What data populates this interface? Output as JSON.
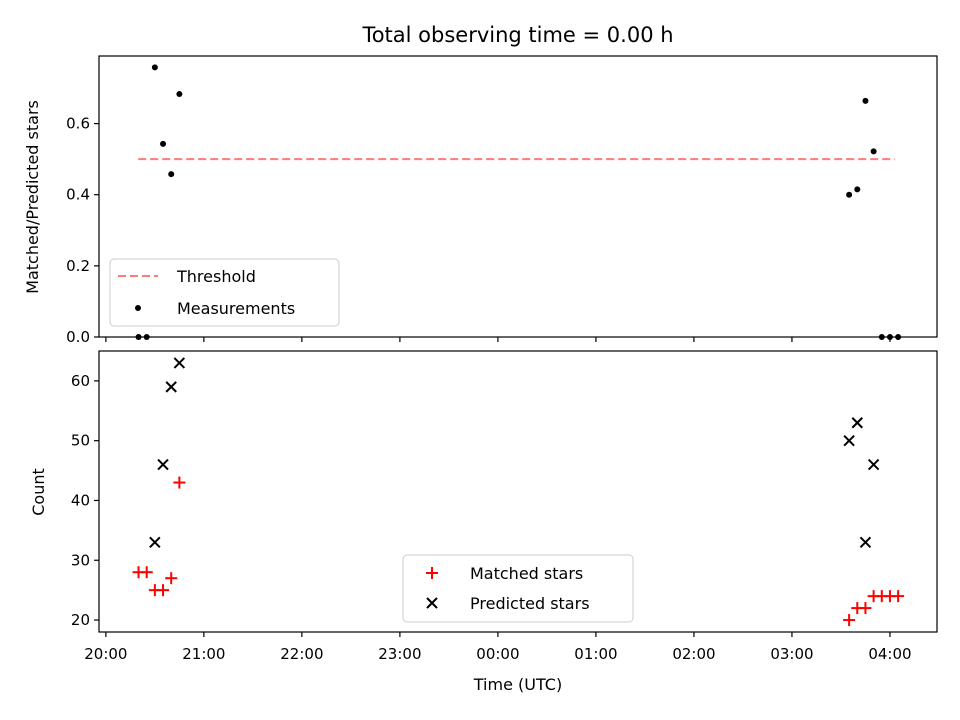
{
  "chart_data": [
    {
      "type": "scatter",
      "title": "Total observing time = 0.00 h",
      "ylabel": "Matched/Predicted stars",
      "xlabel": "",
      "ylim": [
        0,
        0.79
      ],
      "yticks": [
        "0.0",
        "0.2",
        "0.4",
        "0.6"
      ],
      "x_is_time": true,
      "xlim_hours": [
        19.93,
        28.48
      ],
      "xtick_hours": [
        20,
        21,
        22,
        23,
        24,
        25,
        26,
        27,
        28
      ],
      "xtick_labels": [],
      "legend": {
        "placement": "lower-left",
        "entries": [
          "Threshold",
          "Measurements"
        ]
      },
      "threshold": {
        "name": "Threshold",
        "value": 0.5,
        "x_range_hours": [
          20.33,
          28.05
        ],
        "color": "#ff7b7b"
      },
      "series": [
        {
          "name": "Measurements",
          "color": "#000000",
          "points": [
            {
              "x": "20:20",
              "y": 0.0
            },
            {
              "x": "20:25",
              "y": 0.0
            },
            {
              "x": "20:30",
              "y": 0.758
            },
            {
              "x": "20:35",
              "y": 0.543
            },
            {
              "x": "20:40",
              "y": 0.458
            },
            {
              "x": "20:45",
              "y": 0.683
            },
            {
              "x": "27:35",
              "y": 0.4
            },
            {
              "x": "27:40",
              "y": 0.415
            },
            {
              "x": "27:45",
              "y": 0.664
            },
            {
              "x": "27:50",
              "y": 0.522
            },
            {
              "x": "27:55",
              "y": 0.0
            },
            {
              "x": "28:00",
              "y": 0.0
            },
            {
              "x": "28:05",
              "y": 0.0
            }
          ]
        }
      ]
    },
    {
      "type": "scatter",
      "title": "",
      "ylabel": "Count",
      "xlabel": "Time (UTC)",
      "ylim": [
        18,
        65
      ],
      "yticks": [
        "20",
        "30",
        "40",
        "50",
        "60"
      ],
      "x_is_time": true,
      "xlim_hours": [
        19.93,
        28.48
      ],
      "xtick_hours": [
        20,
        21,
        22,
        23,
        24,
        25,
        26,
        27,
        28
      ],
      "xtick_labels": [
        "20:00",
        "21:00",
        "22:00",
        "23:00",
        "00:00",
        "01:00",
        "02:00",
        "03:00",
        "04:00"
      ],
      "legend": {
        "placement": "lower-center",
        "entries": [
          "Matched stars",
          "Predicted stars"
        ]
      },
      "series": [
        {
          "name": "Matched stars",
          "marker": "plus",
          "color": "#ff0000",
          "points": [
            {
              "x": "20:20",
              "y": 28
            },
            {
              "x": "20:25",
              "y": 28
            },
            {
              "x": "20:30",
              "y": 25
            },
            {
              "x": "20:35",
              "y": 25
            },
            {
              "x": "20:40",
              "y": 27
            },
            {
              "x": "20:45",
              "y": 43
            },
            {
              "x": "27:35",
              "y": 20
            },
            {
              "x": "27:40",
              "y": 22
            },
            {
              "x": "27:45",
              "y": 22
            },
            {
              "x": "27:50",
              "y": 24
            },
            {
              "x": "27:55",
              "y": 24
            },
            {
              "x": "28:00",
              "y": 24
            },
            {
              "x": "28:05",
              "y": 24
            }
          ]
        },
        {
          "name": "Predicted stars",
          "marker": "x",
          "color": "#000000",
          "points": [
            {
              "x": "20:30",
              "y": 33
            },
            {
              "x": "20:35",
              "y": 46
            },
            {
              "x": "20:40",
              "y": 59
            },
            {
              "x": "20:45",
              "y": 63
            },
            {
              "x": "27:35",
              "y": 50
            },
            {
              "x": "27:40",
              "y": 53
            },
            {
              "x": "27:45",
              "y": 33
            },
            {
              "x": "27:50",
              "y": 46
            }
          ]
        }
      ]
    }
  ]
}
